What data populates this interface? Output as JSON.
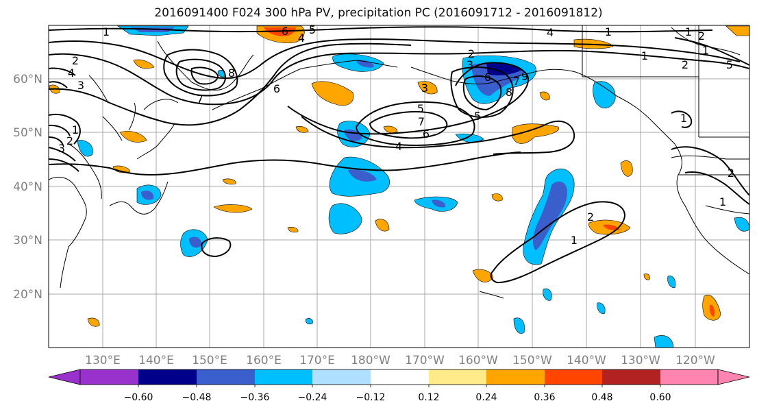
{
  "title": "2016091400 F024 300 hPa PV, precipitation PC (2016091712 - 2016091812)",
  "map": {
    "lon_labels": [
      "130°E",
      "140°E",
      "150°E",
      "160°E",
      "170°E",
      "180°W",
      "170°W",
      "160°W",
      "150°W",
      "140°W",
      "130°W",
      "120°W"
    ],
    "lat_labels": [
      "60°N",
      "50°N",
      "40°N",
      "30°N",
      "20°N"
    ],
    "contour_labels": [
      "1",
      "2",
      "3",
      "4",
      "5",
      "6",
      "7",
      "8",
      "1",
      "2",
      "3",
      "4",
      "5",
      "6",
      "7",
      "1",
      "2",
      "3",
      "4",
      "5",
      "6",
      "7",
      "8",
      "9",
      "1",
      "1",
      "2",
      "1",
      "2",
      "3",
      "4",
      "6",
      "5",
      "1",
      "2",
      "1",
      "1",
      "2"
    ]
  },
  "colorbar": {
    "ticks": [
      "−0.60",
      "−0.48",
      "−0.36",
      "−0.24",
      "−0.12",
      "0.12",
      "0.24",
      "0.36",
      "0.48",
      "0.60"
    ],
    "colors": [
      "#9932cc",
      "#00008b",
      "#3a5fcd",
      "#00bfff",
      "#b0e0ff",
      "#ffffff",
      "#ffeb8a",
      "#ffa500",
      "#ff4500",
      "#b22222",
      "#ff85b0"
    ]
  }
}
